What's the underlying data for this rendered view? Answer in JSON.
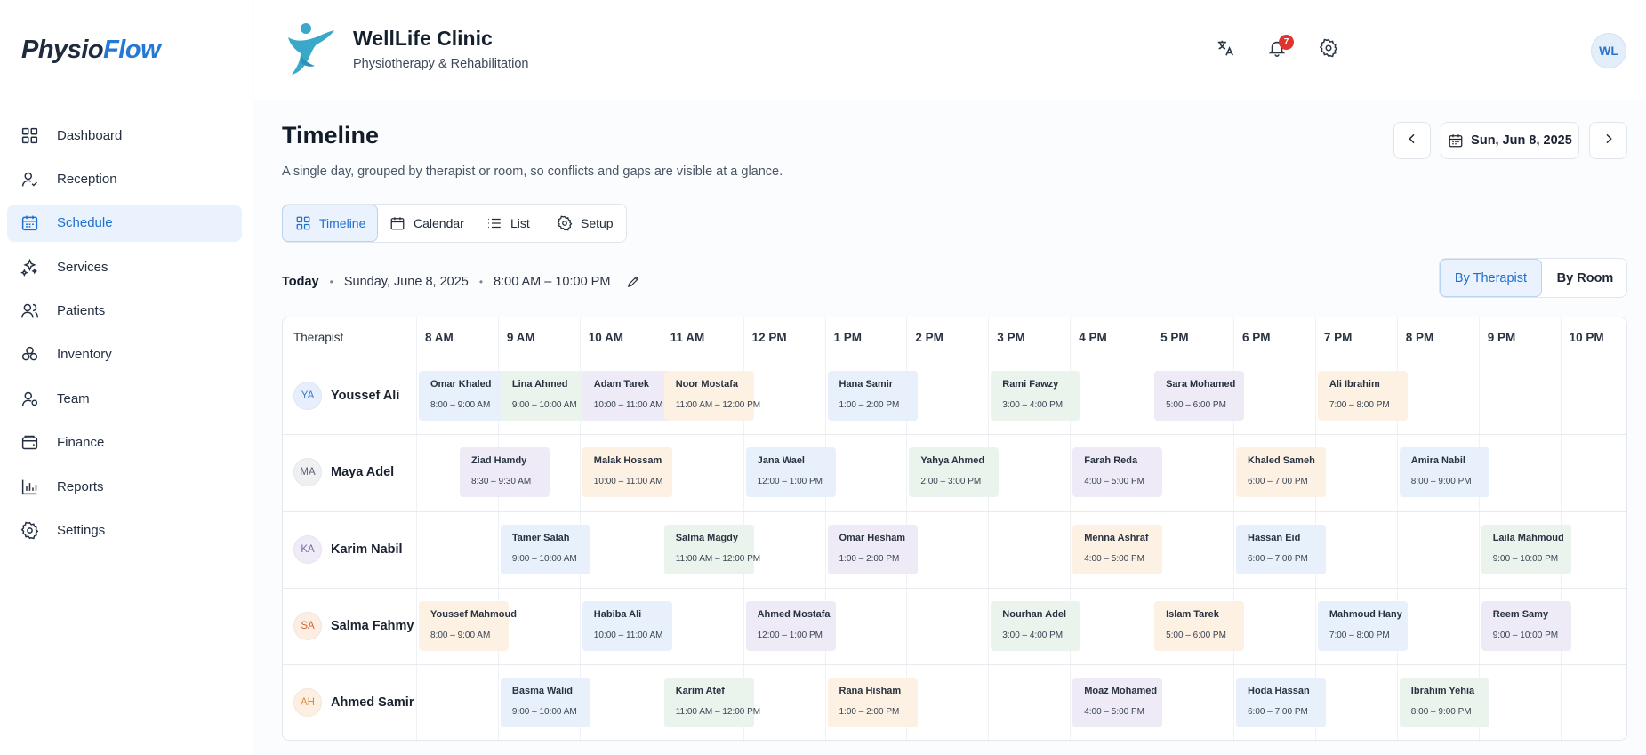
{
  "app": {
    "logo_part1": "Physio",
    "logo_part2": "Flow"
  },
  "sidebar": {
    "items": [
      {
        "label": "Dashboard",
        "icon": "dashboard-icon",
        "active": false
      },
      {
        "label": "Reception",
        "icon": "reception-icon",
        "active": false
      },
      {
        "label": "Schedule",
        "icon": "calendar-icon",
        "active": true
      },
      {
        "label": "Services",
        "icon": "services-icon",
        "active": false
      },
      {
        "label": "Patients",
        "icon": "patients-icon",
        "active": false
      },
      {
        "label": "Inventory",
        "icon": "inventory-icon",
        "active": false
      },
      {
        "label": "Team",
        "icon": "team-icon",
        "active": false
      },
      {
        "label": "Finance",
        "icon": "wallet-icon",
        "active": false
      },
      {
        "label": "Reports",
        "icon": "reports-icon",
        "active": false
      },
      {
        "label": "Settings",
        "icon": "gear-icon",
        "active": false
      }
    ]
  },
  "header": {
    "clinic_name": "WellLife Clinic",
    "clinic_subtitle": "Physiotherapy & Rehabilitation",
    "notification_count": "7",
    "user_initials": "WL"
  },
  "page": {
    "title": "Timeline",
    "description": "A single day, grouped by therapist or room, so conflicts and gaps are visible at a glance.",
    "date_label": "Sun, Jun 8, 2025"
  },
  "view_tabs": [
    {
      "label": "Timeline",
      "active": true
    },
    {
      "label": "Calendar",
      "active": false
    },
    {
      "label": "List",
      "active": false
    },
    {
      "label": "Setup",
      "active": false
    }
  ],
  "info": {
    "today": "Today",
    "date": "Sunday, June 8, 2025",
    "hours": "8:00 AM – 10:00 PM"
  },
  "group_toggle": {
    "by_therapist": "By Therapist",
    "by_room": "By Room",
    "active": "By Therapist"
  },
  "timeline": {
    "first_column": "Therapist",
    "hours": [
      "8 AM",
      "9 AM",
      "10 AM",
      "11 AM",
      "12 PM",
      "1 PM",
      "2 PM",
      "3 PM",
      "4 PM",
      "5 PM",
      "6 PM",
      "7 PM",
      "8 PM",
      "9 PM",
      "10 PM"
    ],
    "colors": {
      "blue": "#e8f0fb",
      "green": "#eaf3ec",
      "purple": "#eeebf7",
      "orange": "#fdf1e3"
    },
    "therapists": [
      {
        "initials": "YA",
        "name": "Youssef Ali",
        "avatar_bg": "#e6effb",
        "avatar_fg": "#3b7bd0",
        "appointments": [
          {
            "name": "Omar Khaled",
            "time": "8:00 – 9:00 AM",
            "start": 8,
            "end": 9,
            "color": "blue"
          },
          {
            "name": "Lina Ahmed",
            "time": "9:00 – 10:00 AM",
            "start": 9,
            "end": 10,
            "color": "green"
          },
          {
            "name": "Adam Tarek",
            "time": "10:00 – 11:00 AM",
            "start": 10,
            "end": 11,
            "color": "purple"
          },
          {
            "name": "Noor Mostafa",
            "time": "11:00 AM – 12:00 PM",
            "start": 11,
            "end": 12,
            "color": "orange"
          },
          {
            "name": "Hana Samir",
            "time": "1:00 – 2:00 PM",
            "start": 13,
            "end": 14,
            "color": "blue"
          },
          {
            "name": "Rami Fawzy",
            "time": "3:00 – 4:00 PM",
            "start": 15,
            "end": 16,
            "color": "green"
          },
          {
            "name": "Sara Mohamed",
            "time": "5:00 – 6:00 PM",
            "start": 17,
            "end": 18,
            "color": "purple"
          },
          {
            "name": "Ali Ibrahim",
            "time": "7:00 – 8:00 PM",
            "start": 19,
            "end": 20,
            "color": "orange"
          }
        ]
      },
      {
        "initials": "MA",
        "name": "Maya Adel",
        "avatar_bg": "#eef0f2",
        "avatar_fg": "#5a6472",
        "appointments": [
          {
            "name": "Ziad Hamdy",
            "time": "8:30 – 9:30 AM",
            "start": 8.5,
            "end": 9.5,
            "color": "purple"
          },
          {
            "name": "Malak Hossam",
            "time": "10:00 – 11:00 AM",
            "start": 10,
            "end": 11,
            "color": "orange"
          },
          {
            "name": "Jana Wael",
            "time": "12:00 – 1:00 PM",
            "start": 12,
            "end": 13,
            "color": "blue"
          },
          {
            "name": "Yahya Ahmed",
            "time": "2:00 – 3:00 PM",
            "start": 14,
            "end": 15,
            "color": "green"
          },
          {
            "name": "Farah Reda",
            "time": "4:00 – 5:00 PM",
            "start": 16,
            "end": 17,
            "color": "purple"
          },
          {
            "name": "Khaled Sameh",
            "time": "6:00 – 7:00 PM",
            "start": 18,
            "end": 19,
            "color": "orange"
          },
          {
            "name": "Amira Nabil",
            "time": "8:00 – 9:00 PM",
            "start": 20,
            "end": 21,
            "color": "blue"
          }
        ]
      },
      {
        "initials": "KA",
        "name": "Karim Nabil",
        "avatar_bg": "#f0ecf7",
        "avatar_fg": "#7a68a8",
        "appointments": [
          {
            "name": "Tamer Salah",
            "time": "9:00 – 10:00 AM",
            "start": 9,
            "end": 10,
            "color": "blue"
          },
          {
            "name": "Salma Magdy",
            "time": "11:00 AM – 12:00 PM",
            "start": 11,
            "end": 12,
            "color": "green"
          },
          {
            "name": "Omar Hesham",
            "time": "1:00 – 2:00 PM",
            "start": 13,
            "end": 14,
            "color": "purple"
          },
          {
            "name": "Menna Ashraf",
            "time": "4:00 – 5:00 PM",
            "start": 16,
            "end": 17,
            "color": "orange"
          },
          {
            "name": "Hassan Eid",
            "time": "6:00 – 7:00 PM",
            "start": 18,
            "end": 19,
            "color": "blue"
          },
          {
            "name": "Laila Mahmoud",
            "time": "9:00 – 10:00 PM",
            "start": 21,
            "end": 22,
            "color": "green"
          }
        ]
      },
      {
        "initials": "SA",
        "name": "Salma Fahmy",
        "avatar_bg": "#fdeee4",
        "avatar_fg": "#d8632e",
        "appointments": [
          {
            "name": "Youssef Mahmoud",
            "time": "8:00 – 9:00 AM",
            "start": 8,
            "end": 9,
            "color": "orange"
          },
          {
            "name": "Habiba Ali",
            "time": "10:00 – 11:00 AM",
            "start": 10,
            "end": 11,
            "color": "blue"
          },
          {
            "name": "Ahmed Mostafa",
            "time": "12:00 – 1:00 PM",
            "start": 12,
            "end": 13,
            "color": "purple"
          },
          {
            "name": "Nourhan Adel",
            "time": "3:00 – 4:00 PM",
            "start": 15,
            "end": 16,
            "color": "green"
          },
          {
            "name": "Islam Tarek",
            "time": "5:00 – 6:00 PM",
            "start": 17,
            "end": 18,
            "color": "orange"
          },
          {
            "name": "Mahmoud Hany",
            "time": "7:00 – 8:00 PM",
            "start": 19,
            "end": 20,
            "color": "blue"
          },
          {
            "name": "Reem Samy",
            "time": "9:00 – 10:00 PM",
            "start": 21,
            "end": 22,
            "color": "purple"
          }
        ]
      },
      {
        "initials": "AH",
        "name": "Ahmed Samir",
        "avatar_bg": "#fdf0e2",
        "avatar_fg": "#d98a3c",
        "appointments": [
          {
            "name": "Basma Walid",
            "time": "9:00 – 10:00 AM",
            "start": 9,
            "end": 10,
            "color": "blue"
          },
          {
            "name": "Karim Atef",
            "time": "11:00 AM – 12:00 PM",
            "start": 11,
            "end": 12,
            "color": "green"
          },
          {
            "name": "Rana Hisham",
            "time": "1:00 – 2:00 PM",
            "start": 13,
            "end": 14,
            "color": "orange"
          },
          {
            "name": "Moaz Mohamed",
            "time": "4:00 – 5:00 PM",
            "start": 16,
            "end": 17,
            "color": "purple"
          },
          {
            "name": "Hoda Hassan",
            "time": "6:00 – 7:00 PM",
            "start": 18,
            "end": 19,
            "color": "blue"
          },
          {
            "name": "Ibrahim Yehia",
            "time": "8:00 – 9:00 PM",
            "start": 20,
            "end": 21,
            "color": "green"
          }
        ]
      }
    ]
  }
}
